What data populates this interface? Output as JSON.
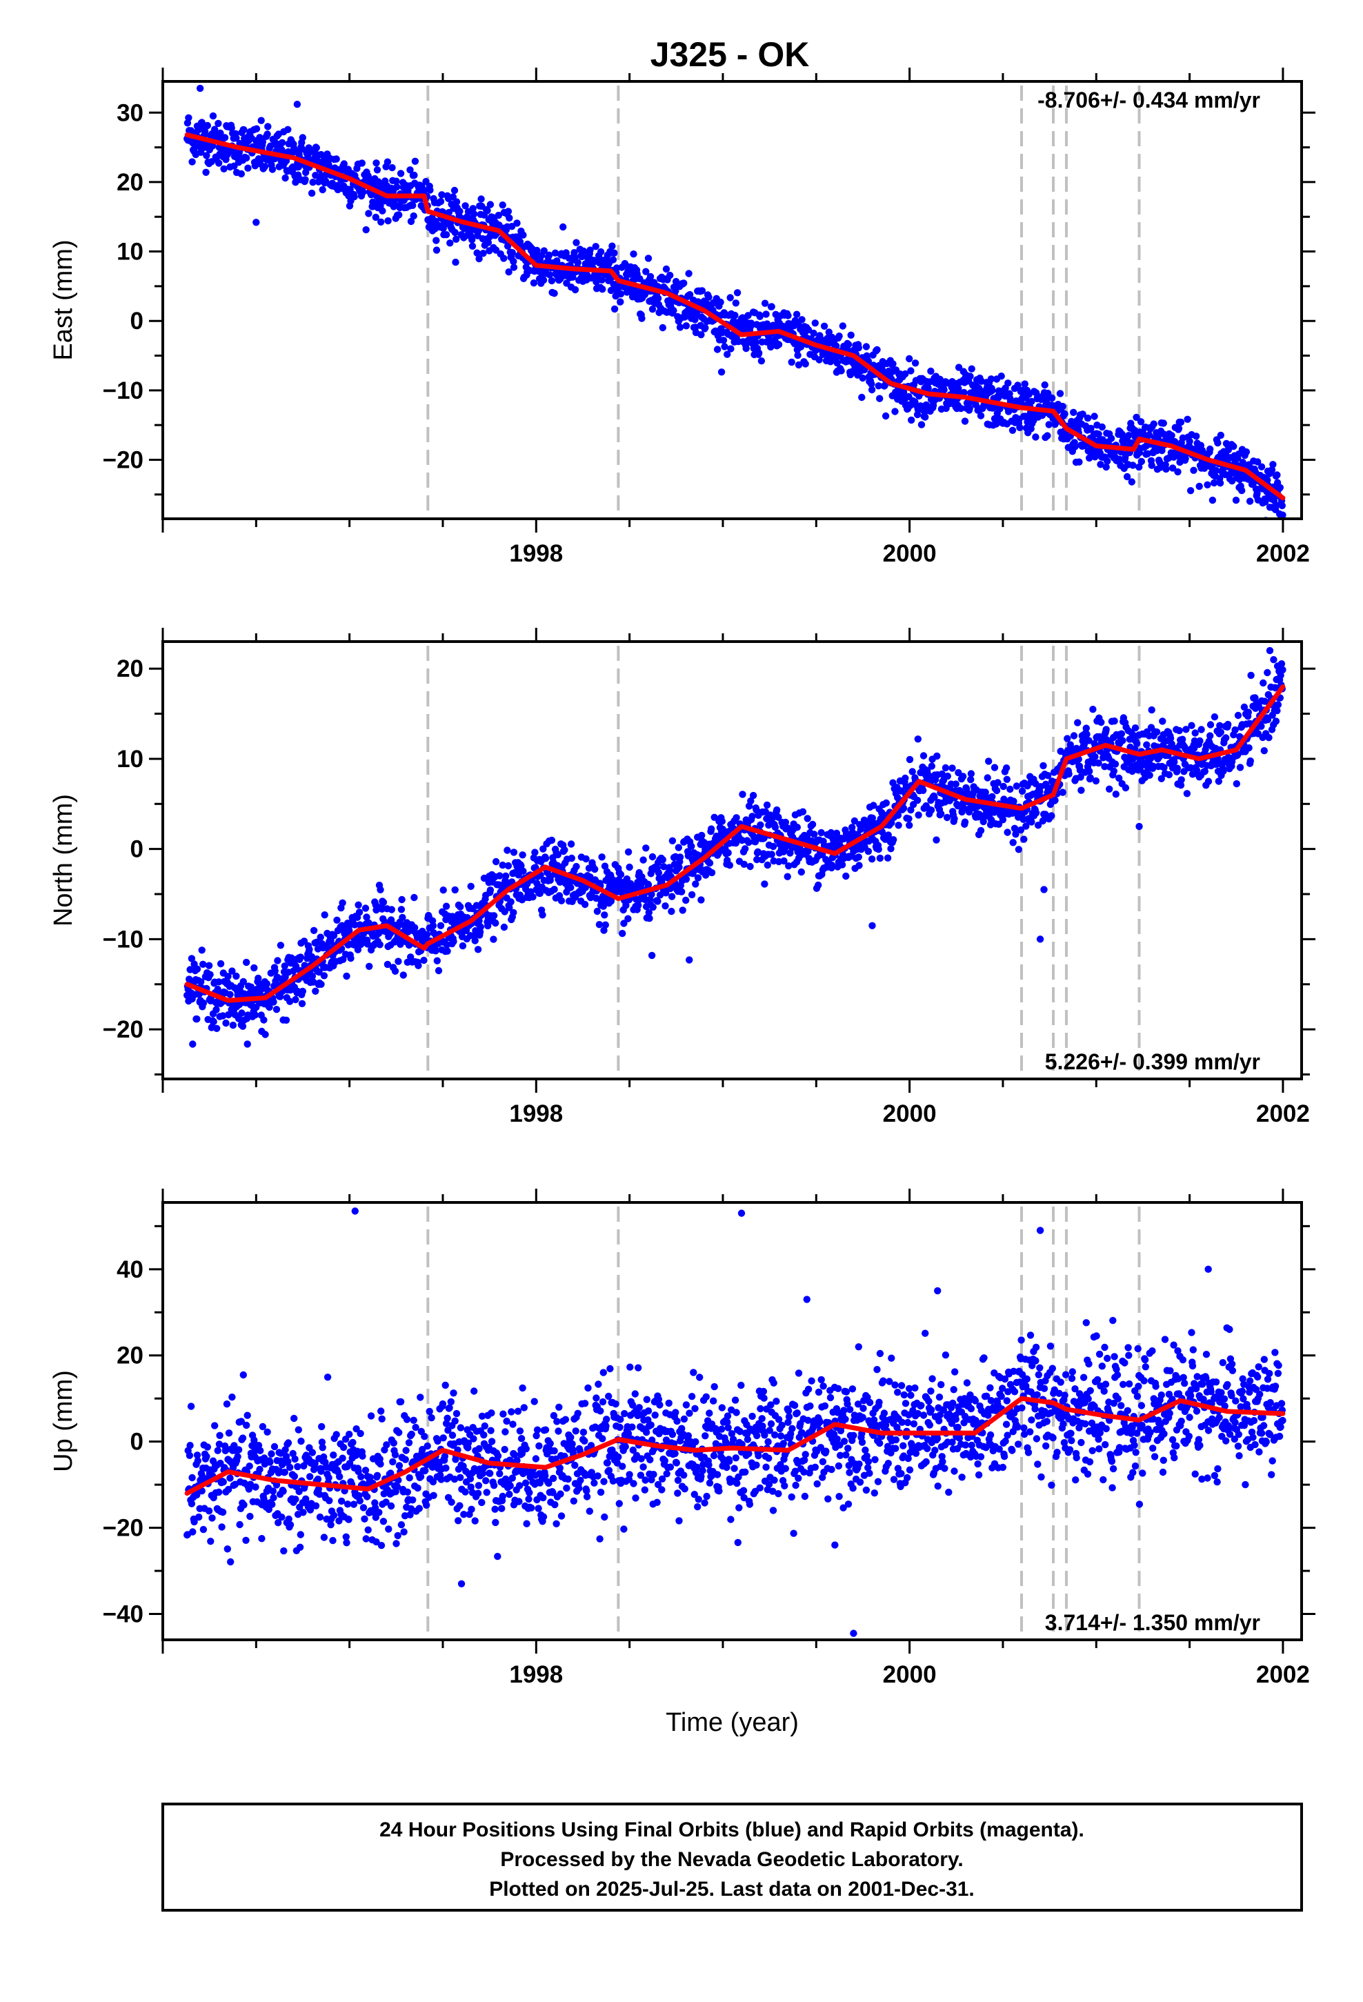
{
  "title": "J325 - OK",
  "colors": {
    "final_orbits": "#0000ff",
    "trend": "#ff0000",
    "step_lines": "#c0c0c0",
    "frame": "#000000"
  },
  "chart_data": [
    {
      "type": "scatter",
      "component": "east",
      "ylabel": "East (mm)",
      "xlabel": "",
      "xlim": [
        1996.0,
        2002.1
      ],
      "ylim": [
        -28.5,
        34.5
      ],
      "x_ticks": [
        1998,
        2000,
        2002
      ],
      "y_ticks": [
        -20,
        -10,
        0,
        10,
        20,
        30
      ],
      "rate_label": "-8.706+/- 0.434 mm/yr",
      "rate_position": "top-right",
      "step_lines": [
        1997.42,
        1998.44,
        2000.6,
        2000.77,
        2000.84,
        2001.23
      ],
      "data_start": 1996.13,
      "data_end": 2002.0,
      "noise_mm": 1.8,
      "trend_x": [
        1996.13,
        1996.4,
        1996.7,
        1997.0,
        1997.2,
        1997.4,
        1997.42,
        1997.6,
        1997.8,
        1998.0,
        1998.2,
        1998.4,
        1998.44,
        1998.7,
        1998.9,
        1999.1,
        1999.3,
        1999.5,
        1999.7,
        1999.9,
        2000.1,
        2000.3,
        2000.6,
        2000.77,
        2000.84,
        2001.0,
        2001.2,
        2001.23,
        2001.4,
        2001.6,
        2001.8,
        2002.0
      ],
      "trend_y": [
        26.8,
        25.0,
        23.5,
        20.5,
        18.0,
        18.0,
        15.8,
        14.3,
        13.0,
        8.0,
        7.5,
        7.2,
        5.8,
        4.0,
        1.5,
        -2.0,
        -1.5,
        -3.5,
        -5.0,
        -9.0,
        -10.5,
        -11.0,
        -12.5,
        -13.0,
        -15.5,
        -18.0,
        -18.5,
        -17.0,
        -18.0,
        -20.0,
        -21.5,
        -25.5
      ],
      "outliers": [
        [
          1996.2,
          33.5
        ],
        [
          1996.5,
          14.2
        ],
        [
          1996.72,
          31.2
        ]
      ]
    },
    {
      "type": "scatter",
      "component": "north",
      "ylabel": "North (mm)",
      "xlabel": "",
      "xlim": [
        1996.0,
        2002.1
      ],
      "ylim": [
        -25.5,
        23.0
      ],
      "x_ticks": [
        1998,
        2000,
        2002
      ],
      "y_ticks": [
        -20,
        -10,
        0,
        10,
        20
      ],
      "rate_label": "5.226+/- 0.399 mm/yr",
      "rate_position": "bottom-right",
      "step_lines": [
        1997.42,
        1998.44,
        2000.6,
        2000.77,
        2000.84,
        2001.23
      ],
      "data_start": 1996.13,
      "data_end": 2002.0,
      "noise_mm": 1.7,
      "trend_x": [
        1996.13,
        1996.35,
        1996.55,
        1996.8,
        1997.05,
        1997.2,
        1997.4,
        1997.42,
        1997.65,
        1997.85,
        1998.05,
        1998.25,
        1998.44,
        1998.7,
        1998.9,
        1999.1,
        1999.35,
        1999.6,
        1999.85,
        2000.05,
        2000.3,
        2000.6,
        2000.77,
        2000.84,
        2001.05,
        2001.23,
        2001.35,
        2001.55,
        2001.75,
        2002.0
      ],
      "trend_y": [
        -15.0,
        -16.8,
        -16.5,
        -13.0,
        -9.0,
        -8.5,
        -11.0,
        -10.5,
        -8.0,
        -4.5,
        -2.0,
        -3.5,
        -5.5,
        -4.0,
        -1.0,
        2.5,
        1.0,
        -0.5,
        2.5,
        7.5,
        5.5,
        4.5,
        6.0,
        10.0,
        11.5,
        10.5,
        11.0,
        10.0,
        11.0,
        18.0
      ],
      "outliers": [
        [
          2000.7,
          -10.0
        ],
        [
          2000.72,
          -4.5
        ],
        [
          1998.62,
          -11.8
        ],
        [
          1998.82,
          -12.3
        ],
        [
          2001.23,
          2.5
        ],
        [
          2001.93,
          22.0
        ],
        [
          2001.95,
          21.0
        ],
        [
          1999.8,
          -8.5
        ]
      ]
    },
    {
      "type": "scatter",
      "component": "up",
      "ylabel": "Up (mm)",
      "xlabel": "Time (year)",
      "xlim": [
        1996.0,
        2002.1
      ],
      "ylim": [
        -46.0,
        55.5
      ],
      "x_ticks": [
        1998,
        2000,
        2002
      ],
      "y_ticks": [
        -40,
        -20,
        0,
        20,
        40
      ],
      "rate_label": "3.714+/- 1.350 mm/yr",
      "rate_position": "bottom-right",
      "step_lines": [
        1997.42,
        1998.44,
        2000.6,
        2000.77,
        2000.84,
        2001.23
      ],
      "data_start": 1996.13,
      "data_end": 2002.0,
      "noise_mm": 7.0,
      "trend_x": [
        1996.13,
        1996.35,
        1996.6,
        1996.85,
        1997.1,
        1997.3,
        1997.5,
        1997.75,
        1998.05,
        1998.25,
        1998.44,
        1998.65,
        1998.85,
        1999.05,
        1999.35,
        1999.6,
        1999.85,
        2000.1,
        2000.35,
        2000.6,
        2000.77,
        2000.84,
        2001.05,
        2001.23,
        2001.45,
        2001.7,
        2002.0
      ],
      "trend_y": [
        -12.0,
        -7.0,
        -9.0,
        -10.0,
        -11.0,
        -7.0,
        -2.0,
        -5.0,
        -6.0,
        -3.0,
        0.5,
        -1.0,
        -2.0,
        -1.5,
        -2.0,
        4.0,
        2.0,
        2.0,
        2.0,
        10.0,
        9.0,
        7.5,
        6.0,
        5.0,
        9.5,
        7.0,
        6.5
      ],
      "outliers": [
        [
          1997.03,
          53.5
        ],
        [
          1999.1,
          53.0
        ],
        [
          1999.7,
          -44.5
        ],
        [
          1999.6,
          -24.0
        ],
        [
          1997.6,
          -33.0
        ],
        [
          2000.7,
          49.0
        ],
        [
          2001.6,
          40.0
        ],
        [
          1999.45,
          33.0
        ],
        [
          2000.15,
          35.0
        ]
      ]
    }
  ],
  "footer": {
    "line1": "24 Hour Positions Using Final Orbits (blue) and Rapid Orbits (magenta).",
    "line2": "Processed by the Nevada Geodetic Laboratory.",
    "line3": "Plotted on 2025-Jul-25. Last data on 2001-Dec-31."
  }
}
